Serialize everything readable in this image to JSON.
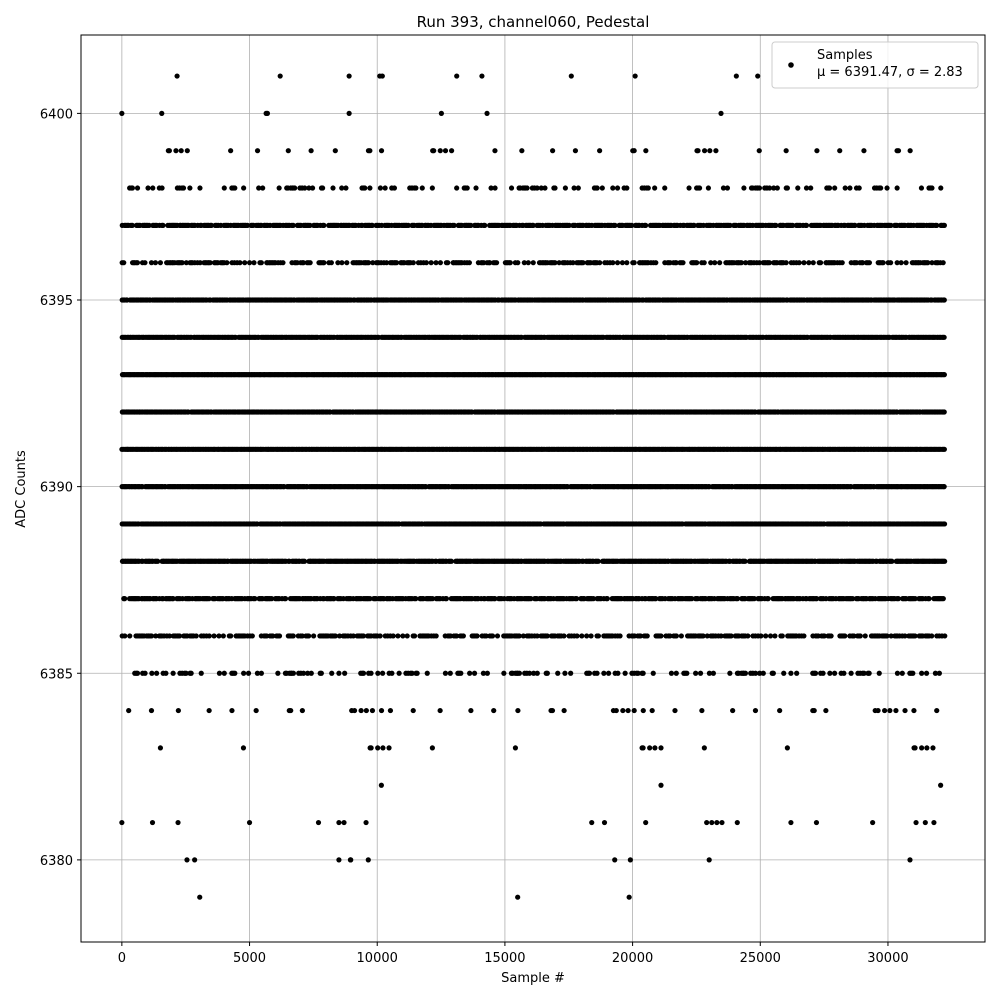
{
  "chart_data": {
    "type": "scatter",
    "title": "Run 393, channel060, Pedestal",
    "xlabel": "Sample #",
    "ylabel": "ADC Counts",
    "xlim": [
      -1600,
      33800
    ],
    "ylim": [
      6377.8,
      6402.1
    ],
    "xticks": [
      0,
      5000,
      10000,
      15000,
      20000,
      25000,
      30000
    ],
    "xtick_labels": [
      "0",
      "5000",
      "10000",
      "15000",
      "20000",
      "25000",
      "30000"
    ],
    "yticks": [
      6380,
      6385,
      6390,
      6395,
      6400
    ],
    "ytick_labels": [
      "6380",
      "6385",
      "6390",
      "6395",
      "6400"
    ],
    "grid": true,
    "legend_position": "top-right",
    "marker_color": "#000000",
    "series": [
      {
        "name": "Samples",
        "note": "μ = 6391.47, σ = 2.83",
        "x_range": [
          0,
          32200
        ],
        "level_fill": [
          {
            "y": 6379,
            "fill": 0.0003
          },
          {
            "y": 6380,
            "fill": 0.002
          },
          {
            "y": 6381,
            "fill": 0.006
          },
          {
            "y": 6382,
            "fill": 0.012
          },
          {
            "y": 6383,
            "fill": 0.06
          },
          {
            "y": 6384,
            "fill": 0.14
          },
          {
            "y": 6385,
            "fill": 0.32
          },
          {
            "y": 6386,
            "fill": 0.58
          },
          {
            "y": 6387,
            "fill": 0.8
          },
          {
            "y": 6388,
            "fill": 0.92
          },
          {
            "y": 6389,
            "fill": 0.99
          },
          {
            "y": 6390,
            "fill": 0.99
          },
          {
            "y": 6391,
            "fill": 1.0
          },
          {
            "y": 6392,
            "fill": 0.99
          },
          {
            "y": 6393,
            "fill": 1.0
          },
          {
            "y": 6394,
            "fill": 0.98
          },
          {
            "y": 6395,
            "fill": 0.97
          },
          {
            "y": 6396,
            "fill": 0.56
          },
          {
            "y": 6397,
            "fill": 0.8
          },
          {
            "y": 6398,
            "fill": 0.3
          },
          {
            "y": 6399,
            "fill": 0.12
          },
          {
            "y": 6400,
            "fill": 0.003
          },
          {
            "y": 6401,
            "fill": 0.004
          }
        ],
        "sparse_points": [
          {
            "x": 0,
            "y": 6381
          },
          {
            "x": 1200,
            "y": 6381
          },
          {
            "x": 2200,
            "y": 6381
          },
          {
            "x": 5000,
            "y": 6381
          },
          {
            "x": 7700,
            "y": 6381
          },
          {
            "x": 8500,
            "y": 6381
          },
          {
            "x": 8700,
            "y": 6381
          },
          {
            "x": 18400,
            "y": 6381
          },
          {
            "x": 18900,
            "y": 6381
          },
          {
            "x": 22900,
            "y": 6381
          },
          {
            "x": 23100,
            "y": 6381
          },
          {
            "x": 23300,
            "y": 6381
          },
          {
            "x": 23500,
            "y": 6381
          },
          {
            "x": 24100,
            "y": 6381
          },
          {
            "x": 26200,
            "y": 6381
          },
          {
            "x": 27200,
            "y": 6381
          },
          {
            "x": 29400,
            "y": 6381
          },
          {
            "x": 31100,
            "y": 6381
          },
          {
            "x": 31800,
            "y": 6381
          },
          {
            "x": 2550,
            "y": 6380
          },
          {
            "x": 2850,
            "y": 6380
          },
          {
            "x": 8500,
            "y": 6380
          },
          {
            "x": 8950,
            "y": 6380
          },
          {
            "x": 9650,
            "y": 6380
          },
          {
            "x": 19300,
            "y": 6380
          },
          {
            "x": 23000,
            "y": 6380
          },
          {
            "x": 3050,
            "y": 6379
          },
          {
            "x": 15500,
            "y": 6379
          },
          {
            "x": 0,
            "y": 6400
          },
          {
            "x": 5650,
            "y": 6400
          },
          {
            "x": 5700,
            "y": 6400
          },
          {
            "x": 8900,
            "y": 6400
          },
          {
            "x": 14300,
            "y": 6400
          },
          {
            "x": 6200,
            "y": 6401
          },
          {
            "x": 8900,
            "y": 6401
          },
          {
            "x": 10100,
            "y": 6401
          },
          {
            "x": 10200,
            "y": 6401
          },
          {
            "x": 14100,
            "y": 6401
          },
          {
            "x": 17600,
            "y": 6401
          },
          {
            "x": 20100,
            "y": 6401
          },
          {
            "x": 24900,
            "y": 6401
          }
        ]
      }
    ]
  }
}
